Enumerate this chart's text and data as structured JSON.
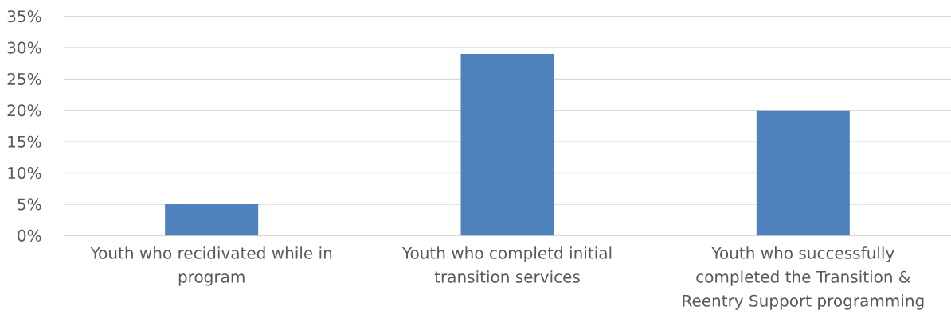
{
  "chart_data": {
    "type": "bar",
    "categories": [
      "Youth who recidivated while in program",
      "Youth who completd initial transition services",
      "Youth who successfully completed the Transition & Reentry Support programming"
    ],
    "values": [
      5,
      29,
      20
    ],
    "color": "#4f81bd",
    "ylim": [
      0,
      35
    ],
    "yticks": [
      {
        "value": 0,
        "label": "0%"
      },
      {
        "value": 5,
        "label": "5%"
      },
      {
        "value": 10,
        "label": "10%"
      },
      {
        "value": 15,
        "label": "15%"
      },
      {
        "value": 20,
        "label": "20%"
      },
      {
        "value": 25,
        "label": "25%"
      },
      {
        "value": 30,
        "label": "30%"
      },
      {
        "value": 35,
        "label": "35%"
      }
    ],
    "grid": "y"
  }
}
